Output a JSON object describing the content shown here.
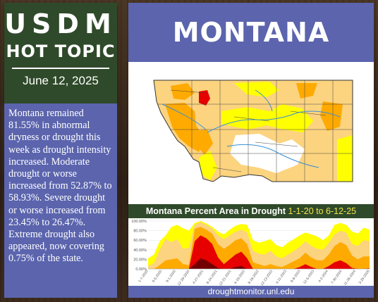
{
  "header": {
    "brand": "USDM",
    "subtitle": "HOT TOPIC",
    "date": "June 12, 2025",
    "state": "MONTANA"
  },
  "summary": "Montana remained 81.55% in abnormal dryness or drought this week as drought intensity increased. Moderate drought or worse increased from 52.87% to 58.93%. Severe drought or worse increased from 23.45% to 26.47%. Extreme drought also appeared, now covering 0.75% of the state.",
  "chart": {
    "title": "Montana Percent Area in Drought",
    "range": "1-1-20 to 6-12-25"
  },
  "footer": "droughtmonitor.unl.edu",
  "colors": {
    "D0": "#ffff00",
    "D1": "#fcd37f",
    "D2": "#ffaa00",
    "D3": "#e60000",
    "D4": "#730000"
  },
  "chart_data": {
    "type": "area",
    "y_ticks": [
      "100.00%",
      "80.00%",
      "60.00%",
      "40.00%",
      "20.00%",
      "0.00%"
    ],
    "x_ticks": [
      "1-7-2020",
      "5-5-2020",
      "9-1-2020",
      "12-29-2020",
      "4-27-2021",
      "8-24-2021",
      "12-21-2021",
      "4-19-2022",
      "8-16-2022",
      "12-13-2022",
      "4-11-2023",
      "8-8-2023",
      "12-5-2023",
      "4-2-2024",
      "7-30-2024",
      "11-26-2024",
      "3-25-2025"
    ],
    "ylim": [
      0,
      100
    ],
    "series": [
      {
        "level": "D0",
        "values": [
          22,
          30,
          58,
          70,
          88,
          92,
          85,
          80,
          96,
          100,
          95,
          88,
          78,
          72,
          82,
          90,
          94,
          92,
          60,
          55,
          58,
          62,
          50,
          45,
          55,
          62,
          70,
          76,
          72,
          68,
          60,
          70,
          92,
          96,
          92,
          78,
          74,
          86,
          82
        ]
      },
      {
        "level": "D1",
        "values": [
          6,
          12,
          40,
          62,
          56,
          62,
          42,
          44,
          92,
          98,
          92,
          85,
          70,
          62,
          70,
          78,
          82,
          76,
          38,
          32,
          30,
          38,
          26,
          22,
          30,
          38,
          46,
          58,
          48,
          42,
          40,
          54,
          72,
          80,
          76,
          52,
          48,
          60,
          58
        ]
      },
      {
        "level": "D2",
        "values": [
          0,
          0,
          8,
          18,
          20,
          22,
          10,
          8,
          84,
          88,
          82,
          74,
          52,
          42,
          50,
          60,
          64,
          52,
          14,
          10,
          6,
          10,
          6,
          4,
          10,
          16,
          22,
          34,
          24,
          18,
          18,
          30,
          48,
          56,
          50,
          28,
          20,
          26,
          26
        ]
      },
      {
        "level": "D3",
        "values": [
          0,
          0,
          0,
          0,
          0,
          0,
          0,
          0,
          58,
          70,
          64,
          52,
          24,
          10,
          20,
          30,
          36,
          22,
          0,
          0,
          0,
          0,
          0,
          0,
          0,
          0,
          4,
          10,
          4,
          0,
          0,
          6,
          14,
          18,
          12,
          2,
          0,
          0,
          1
        ]
      },
      {
        "level": "D4",
        "values": [
          0,
          0,
          0,
          0,
          0,
          0,
          0,
          0,
          10,
          22,
          18,
          10,
          2,
          0,
          0,
          4,
          6,
          0,
          0,
          0,
          0,
          0,
          0,
          0,
          0,
          0,
          0,
          0,
          0,
          0,
          0,
          0,
          0,
          0,
          0,
          0,
          0,
          0,
          0
        ]
      }
    ]
  }
}
